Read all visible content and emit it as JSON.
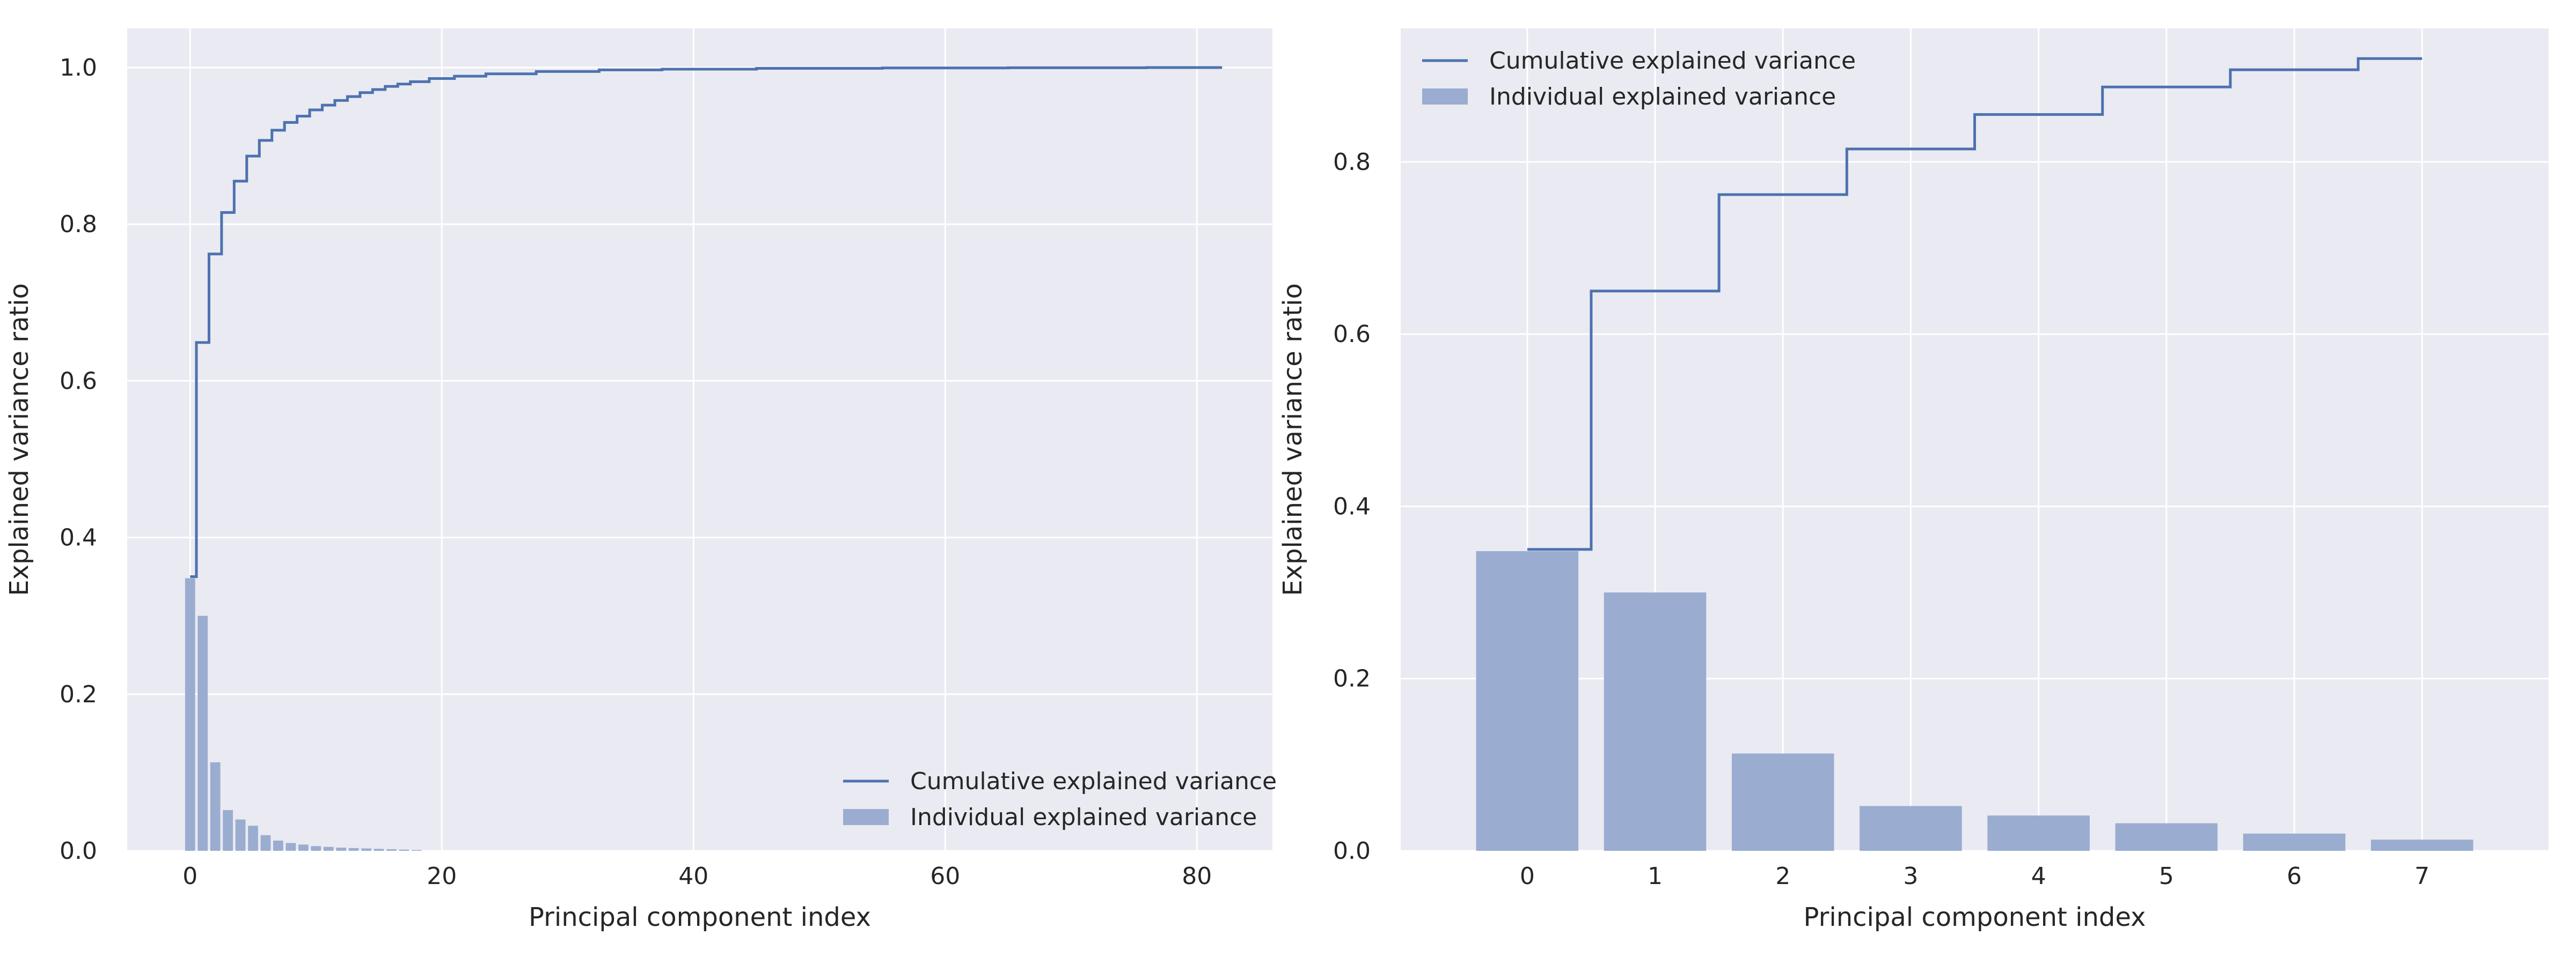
{
  "chart_data": [
    {
      "type": "bar",
      "xlabel": "Principal component index",
      "ylabel": "Explained variance ratio",
      "xlim": [
        -5,
        86
      ],
      "ylim": [
        0,
        1.05
      ],
      "xticks": [
        0,
        20,
        40,
        60,
        80
      ],
      "xtick_labels": [
        "0",
        "20",
        "40",
        "60",
        "80"
      ],
      "yticks": [
        0.0,
        0.2,
        0.4,
        0.6,
        0.8,
        1.0
      ],
      "ytick_labels": [
        "0.0",
        "0.2",
        "0.4",
        "0.6",
        "0.8",
        "1.0"
      ],
      "grid": true,
      "legend_position": "lower-right",
      "legend": [
        "Cumulative explained variance",
        "Individual explained variance"
      ],
      "bar_x": [
        0,
        1,
        2,
        3,
        4,
        5,
        6,
        7,
        8,
        9,
        10,
        11,
        12,
        13,
        14,
        15,
        16,
        17,
        18
      ],
      "bar_values": [
        0.348,
        0.3,
        0.113,
        0.052,
        0.04,
        0.032,
        0.02,
        0.013,
        0.01,
        0.008,
        0.006,
        0.005,
        0.004,
        0.0035,
        0.003,
        0.0025,
        0.002,
        0.0015,
        0.001
      ],
      "step_x": [
        0,
        1,
        2,
        3,
        4,
        5,
        6,
        7,
        8,
        9,
        10,
        11,
        12,
        13,
        14,
        15,
        16,
        17,
        18,
        20,
        22,
        25,
        30,
        35,
        40,
        50,
        60,
        70,
        82
      ],
      "step_values": [
        0.35,
        0.649,
        0.762,
        0.815,
        0.855,
        0.887,
        0.907,
        0.92,
        0.93,
        0.938,
        0.946,
        0.952,
        0.958,
        0.963,
        0.968,
        0.972,
        0.976,
        0.979,
        0.982,
        0.986,
        0.989,
        0.992,
        0.995,
        0.997,
        0.998,
        0.999,
        0.9995,
        0.9998,
        1.0
      ],
      "line_color": "#4c72b0",
      "bar_color": "#9aadd0"
    },
    {
      "type": "bar",
      "xlabel": "Principal component index",
      "ylabel": "Explained variance ratio",
      "xlim": [
        -0.99,
        7.99
      ],
      "ylim": [
        0,
        0.955
      ],
      "xticks": [
        0,
        1,
        2,
        3,
        4,
        5,
        6,
        7
      ],
      "xtick_labels": [
        "0",
        "1",
        "2",
        "3",
        "4",
        "5",
        "6",
        "7"
      ],
      "yticks": [
        0.0,
        0.2,
        0.4,
        0.6,
        0.8
      ],
      "ytick_labels": [
        "0.0",
        "0.2",
        "0.4",
        "0.6",
        "0.8"
      ],
      "grid": true,
      "legend_position": "upper-left",
      "legend": [
        "Cumulative explained variance",
        "Individual explained variance"
      ],
      "bar_x": [
        0,
        1,
        2,
        3,
        4,
        5,
        6,
        7
      ],
      "bar_values": [
        0.348,
        0.3,
        0.113,
        0.052,
        0.041,
        0.032,
        0.02,
        0.013
      ],
      "step_x": [
        0,
        1,
        2,
        3,
        4,
        5,
        6,
        7
      ],
      "step_values": [
        0.35,
        0.65,
        0.762,
        0.815,
        0.855,
        0.887,
        0.907,
        0.92
      ],
      "line_color": "#4c72b0",
      "bar_color": "#9aadd0"
    }
  ]
}
